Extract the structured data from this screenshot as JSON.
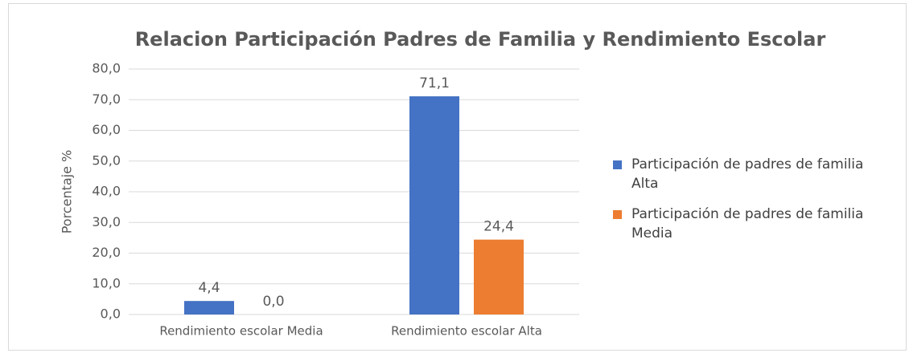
{
  "chart_data": {
    "type": "bar",
    "title": "Relacion  Participación  Padres de Familia y Rendimiento Escolar",
    "y_label": "Porcentaje %",
    "categories": [
      "Rendimiento escolar Media",
      "Rendimiento escolar Alta"
    ],
    "series": [
      {
        "name": "Participación de padres de familia Alta",
        "color": "#4472c4",
        "values": [
          4.4,
          71.1
        ],
        "value_labels": [
          "4,4",
          "71,1"
        ]
      },
      {
        "name": "Participación de padres de familia Media",
        "color": "#ed7d31",
        "values": [
          0.0,
          24.4
        ],
        "value_labels": [
          "0,0",
          "24,4"
        ]
      }
    ],
    "ylim": [
      0,
      80
    ],
    "yticks": [
      {
        "value": 0,
        "label": "0,0"
      },
      {
        "value": 10,
        "label": "10,0"
      },
      {
        "value": 20,
        "label": "20,0"
      },
      {
        "value": 30,
        "label": "30,0"
      },
      {
        "value": 40,
        "label": "40,0"
      },
      {
        "value": 50,
        "label": "50,0"
      },
      {
        "value": 60,
        "label": "60,0"
      },
      {
        "value": 70,
        "label": "70,0"
      },
      {
        "value": 80,
        "label": "80,0"
      }
    ],
    "grid": true,
    "legend": "right"
  }
}
